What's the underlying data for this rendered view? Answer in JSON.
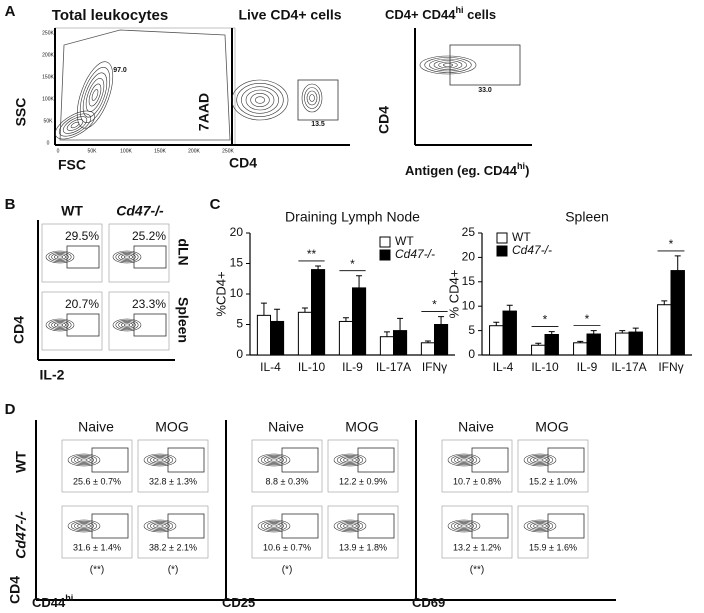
{
  "panels": {
    "A": {
      "letter": "A",
      "plots": [
        {
          "title": "Total leukocytes",
          "x_label": "FSC",
          "y_label": "SSC",
          "gate_value": "97.0",
          "xticks": [
            "0",
            "50K",
            "100K",
            "150K",
            "200K",
            "250K"
          ],
          "yticks": [
            "0",
            "50K",
            "100K",
            "150K",
            "200K",
            "250K"
          ]
        },
        {
          "title": "Live CD4+ cells",
          "x_label": "CD4",
          "y_label": "7AAD",
          "gate_value": "13.5"
        },
        {
          "title": "CD4+ CD44",
          "title_sup": "hi",
          "title_suffix": " cells",
          "x_label": "Antigen (eg. CD44",
          "x_label_sup": "hi",
          "x_label_suffix": ")",
          "y_label": "CD4",
          "gate_value": "33.0"
        }
      ]
    },
    "B": {
      "letter": "B",
      "columns": [
        "WT",
        "Cd47-/-"
      ],
      "rows": [
        "dLN",
        "Spleen"
      ],
      "values": [
        [
          "29.5%",
          "25.2%"
        ],
        [
          "20.7%",
          "23.3%"
        ]
      ],
      "y_label": "CD4",
      "x_label": "IL-2"
    },
    "C": {
      "letter": "C"
    },
    "D": {
      "letter": "D",
      "rows": [
        "WT",
        "Cd47-/-"
      ],
      "y_label": "CD4",
      "groups": [
        {
          "marker": "CD44",
          "marker_sup": "hi",
          "columns": [
            "Naive",
            "MOG"
          ],
          "values": [
            [
              "25.6 ± 0.7%",
              "32.8 ± 1.3%"
            ],
            [
              "31.6 ± 1.4%",
              "38.2 ± 2.1%"
            ]
          ],
          "significance": [
            "(**)",
            "(*)"
          ]
        },
        {
          "marker": "CD25",
          "columns": [
            "Naive",
            "MOG"
          ],
          "values": [
            [
              "8.8 ± 0.3%",
              "12.2 ± 0.9%"
            ],
            [
              "10.6 ± 0.7%",
              "13.9 ± 1.8%"
            ]
          ],
          "significance": [
            "(*)",
            null
          ]
        },
        {
          "marker": "CD69",
          "columns": [
            "Naive",
            "MOG"
          ],
          "values": [
            [
              "10.7 ± 0.8%",
              "15.2 ± 1.0%"
            ],
            [
              "13.2 ± 1.2%",
              "15.9 ± 1.6%"
            ]
          ],
          "significance": [
            "(**)",
            null
          ]
        }
      ]
    }
  },
  "chart_data": [
    {
      "type": "bar",
      "title": "Draining Lymph Node",
      "y_label": "%CD4+",
      "categories": [
        "IL-4",
        "IL-10",
        "IL-9",
        "IL-17A",
        "IFNγ"
      ],
      "series": [
        {
          "name": "WT",
          "color": "#ffffff",
          "values": [
            6.5,
            7,
            5.5,
            3,
            2
          ],
          "errors": [
            2,
            0.7,
            0.6,
            0.8,
            0.3
          ]
        },
        {
          "name": "Cd47-/-",
          "color": "#000000",
          "values": [
            5.5,
            14,
            11,
            4,
            5
          ],
          "errors": [
            2,
            0.6,
            2,
            2,
            1.3
          ]
        }
      ],
      "significance": [
        null,
        "**",
        "*",
        null,
        "*"
      ],
      "ylim": [
        0,
        20
      ],
      "yticks": [
        0,
        5,
        10,
        15,
        20
      ]
    },
    {
      "type": "bar",
      "title": "Spleen",
      "y_label": "% CD4+",
      "categories": [
        "IL-4",
        "IL-10",
        "IL-9",
        "IL-17A",
        "IFNγ"
      ],
      "series": [
        {
          "name": "WT",
          "color": "#ffffff",
          "values": [
            6,
            2,
            2.5,
            4.5,
            10.3
          ],
          "errors": [
            0.7,
            0.4,
            0.3,
            0.5,
            0.8
          ]
        },
        {
          "name": "Cd47-/-",
          "color": "#000000",
          "values": [
            9,
            4.2,
            4.3,
            4.7,
            17.3
          ],
          "errors": [
            1.2,
            0.6,
            0.7,
            0.8,
            3
          ]
        }
      ],
      "significance": [
        null,
        "*",
        "*",
        null,
        "*"
      ],
      "ylim": [
        0,
        25
      ],
      "yticks": [
        0,
        5,
        10,
        15,
        20,
        25
      ]
    }
  ]
}
